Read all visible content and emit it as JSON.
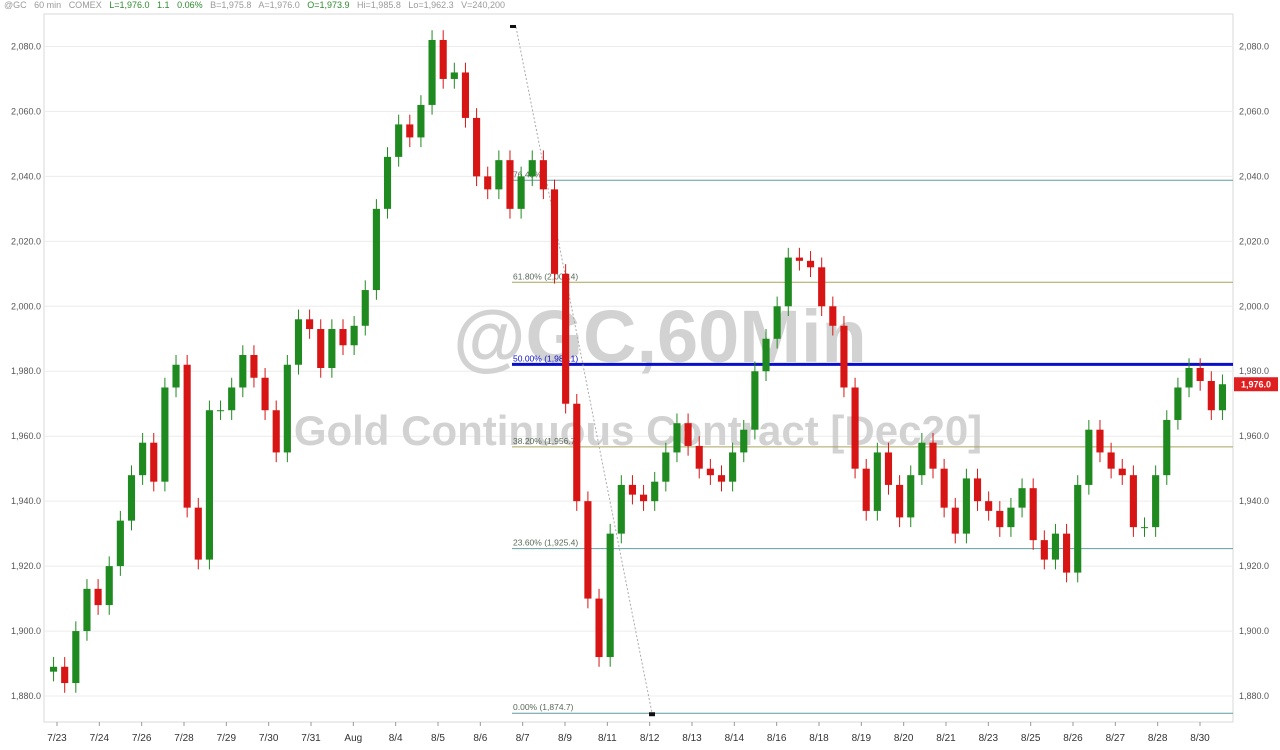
{
  "header": {
    "symbol": "@GC",
    "interval": "60 min",
    "exchange": "COMEX",
    "last": "L=1,976.0",
    "change": "1.1",
    "change_pct": "0.06%",
    "bid": "B=1,975.8",
    "ask": "A=1,976.0",
    "open": "O=1,973.9",
    "high": "Hi=1,985.8",
    "low": "Lo=1,962.3",
    "volume": "V=240,200"
  },
  "watermark": {
    "line1": "@GC,60Min",
    "line2": "Gold Continuous Contract [Dec20]"
  },
  "chart_data": {
    "type": "candlestick",
    "ylim": [
      1872,
      2090
    ],
    "y_ticks": [
      1880,
      1900,
      1920,
      1940,
      1960,
      1980,
      2000,
      2020,
      2040,
      2060,
      2080
    ],
    "y_tick_labels": [
      "1,880.0",
      "1,900.0",
      "1,920.0",
      "1,940.0",
      "1,960.0",
      "1,980.0",
      "2,000.0",
      "2,020.0",
      "2,040.0",
      "2,060.0",
      "2,080.0"
    ],
    "x_labels": [
      "7/23",
      "7/24",
      "7/26",
      "7/28",
      "7/29",
      "7/30",
      "7/31",
      "Aug",
      "8/4",
      "8/5",
      "8/6",
      "8/7",
      "8/9",
      "8/11",
      "8/12",
      "8/13",
      "8/14",
      "8/16",
      "8/18",
      "8/19",
      "8/20",
      "8/21",
      "8/23",
      "8/25",
      "8/26",
      "8/27",
      "8/28",
      "8/30"
    ],
    "last_price": 1976.0,
    "last_price_label": "1,976.0",
    "colors": {
      "up": "#1f8a1f",
      "down": "#d81515",
      "fib_teal": "#5f9ea0",
      "fib_olive": "#a9a35a",
      "fib_50": "#0a10c8"
    },
    "price_path": [
      [
        1887.5,
        1889
      ],
      [
        1890,
        1884
      ],
      [
        1898,
        1900
      ],
      [
        1905,
        1913
      ],
      [
        1902,
        1908
      ],
      [
        1912,
        1920
      ],
      [
        1920,
        1934
      ],
      [
        1944,
        1948
      ],
      [
        1950,
        1958
      ],
      [
        1954,
        1946
      ],
      [
        1960,
        1975
      ],
      [
        1982,
        1982
      ],
      [
        1965,
        1938
      ],
      [
        1932,
        1922
      ],
      [
        1955,
        1968
      ],
      [
        1970,
        1968
      ],
      [
        1971,
        1975
      ],
      [
        1970,
        1985
      ],
      [
        1975,
        1978
      ],
      [
        1980,
        1968
      ],
      [
        1968,
        1955
      ],
      [
        1968,
        1982
      ],
      [
        1985,
        1996
      ],
      [
        1990,
        1993
      ],
      [
        1998,
        1981
      ],
      [
        1986,
        1993
      ],
      [
        1982,
        1988
      ],
      [
        1986,
        1994
      ],
      [
        2000,
        2005
      ],
      [
        2018,
        2030
      ],
      [
        2040,
        2046
      ],
      [
        2046,
        2056
      ],
      [
        2058,
        2052
      ],
      [
        2056,
        2062
      ],
      [
        2070,
        2082
      ],
      [
        2078,
        2070
      ],
      [
        2068,
        2072
      ],
      [
        2060,
        2058
      ],
      [
        2050,
        2040
      ],
      [
        2035,
        2036
      ],
      [
        2040,
        2045
      ],
      [
        2042,
        2030
      ],
      [
        2032,
        2040
      ],
      [
        2052,
        2045
      ],
      [
        2040,
        2036
      ],
      [
        2030,
        2010
      ],
      [
        2000,
        1970
      ],
      [
        1950,
        1940
      ],
      [
        1920,
        1910
      ],
      [
        1895,
        1892
      ],
      [
        1920,
        1930
      ],
      [
        1940,
        1945
      ],
      [
        1958,
        1942
      ],
      [
        1935,
        1940
      ],
      [
        1944,
        1946
      ],
      [
        1948,
        1955
      ],
      [
        1965,
        1964
      ],
      [
        1960,
        1957
      ],
      [
        1954,
        1950
      ],
      [
        1950,
        1948
      ],
      [
        1942,
        1946
      ],
      [
        1946,
        1955
      ],
      [
        1958,
        1962
      ],
      [
        1968,
        1980
      ],
      [
        1985,
        1990
      ],
      [
        1996,
        2000
      ],
      [
        2008,
        2015
      ],
      [
        2018,
        2014
      ],
      [
        2010,
        2012
      ],
      [
        2006,
        2000
      ],
      [
        1997,
        1994
      ],
      [
        1988,
        1975
      ],
      [
        1965,
        1950
      ],
      [
        1942,
        1937
      ],
      [
        1950,
        1955
      ],
      [
        1952,
        1945
      ],
      [
        1940,
        1935
      ],
      [
        1940,
        1948
      ],
      [
        1955,
        1958
      ],
      [
        1954,
        1950
      ],
      [
        1942,
        1938
      ],
      [
        1934,
        1930
      ],
      [
        1945,
        1947
      ],
      [
        1943,
        1940
      ],
      [
        1942,
        1937
      ],
      [
        1938,
        1932
      ],
      [
        1935,
        1938
      ],
      [
        1940,
        1944
      ],
      [
        1935,
        1928
      ],
      [
        1928,
        1922
      ],
      [
        1932,
        1930
      ],
      [
        1926,
        1918
      ],
      [
        1930,
        1945
      ],
      [
        1955,
        1962
      ],
      [
        1960,
        1955
      ],
      [
        1951,
        1950
      ],
      [
        1950,
        1948
      ],
      [
        1940,
        1932
      ],
      [
        1928,
        1932
      ],
      [
        1938,
        1948
      ],
      [
        1955,
        1965
      ],
      [
        1970,
        1975
      ],
      [
        1978,
        1981
      ],
      [
        1980,
        1977
      ],
      [
        1970,
        1968
      ],
      [
        1974,
        1976
      ]
    ],
    "fibonacci": [
      {
        "label": "76.40%",
        "level": 2038.8,
        "style": "fib_teal"
      },
      {
        "label": "61.80% (2,007.4)",
        "level": 2007.4,
        "style": "fib_olive"
      },
      {
        "label": "50.00% (1,982.1)",
        "level": 1982.1,
        "style": "fib_50"
      },
      {
        "label": "38.20% (1,956.7)",
        "level": 1956.7,
        "style": "fib_olive"
      },
      {
        "label": "23.60% (1,925.4)",
        "level": 1925.4,
        "style": "fib_teal"
      },
      {
        "label": "0.00% (1,874.7)",
        "level": 1874.7,
        "style": "fib_teal"
      }
    ]
  }
}
